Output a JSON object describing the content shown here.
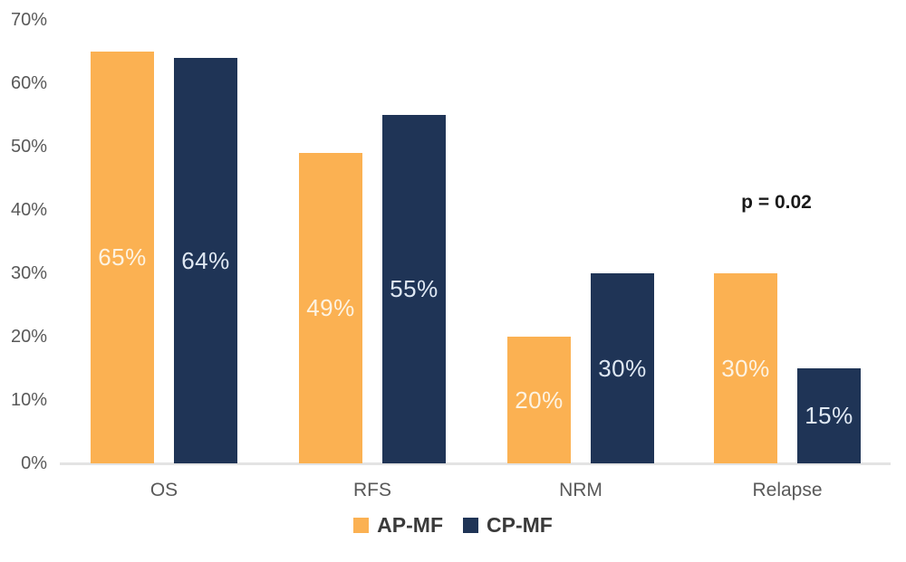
{
  "chart_data": {
    "type": "bar",
    "categories": [
      "OS",
      "RFS",
      "NRM",
      "Relapse"
    ],
    "series": [
      {
        "name": "AP-MF",
        "color": "#FBB152",
        "label_color": "#FDF3E2",
        "values": [
          65,
          49,
          20,
          30
        ]
      },
      {
        "name": "CP-MF",
        "color": "#1F3456",
        "label_color": "#DFE8F3",
        "values": [
          64,
          55,
          30,
          15
        ]
      }
    ],
    "value_suffix": "%",
    "ylim": [
      0,
      70
    ],
    "yticks": [
      "0%",
      "10%",
      "20%",
      "30%",
      "40%",
      "50%",
      "60%",
      "70%"
    ],
    "grid": false,
    "legend_position": "bottom",
    "annotation": {
      "text": "p = 0.02"
    },
    "colors": {
      "axis_label": "#595959",
      "axis_line": "#e3e3e3",
      "annotation_text": "#1a1a1a",
      "legend_text": "#3a3a3a"
    }
  }
}
